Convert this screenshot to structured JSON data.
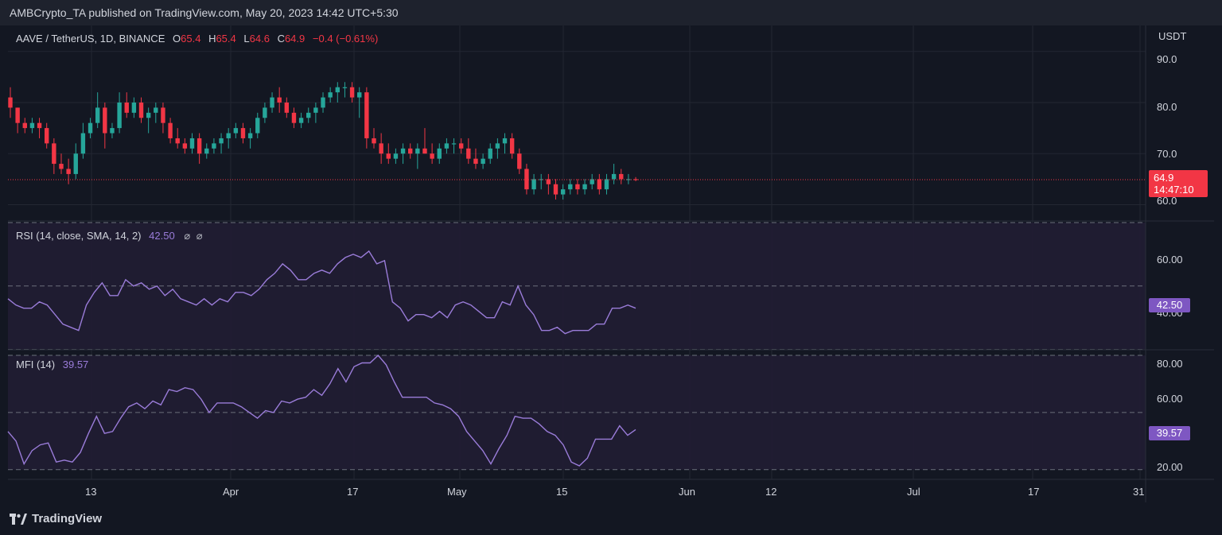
{
  "header": {
    "published": "AMBCrypto_TA published on TradingView.com, May 20, 2023 14:42 UTC+5:30"
  },
  "footer": {
    "brand": "TradingView"
  },
  "chart_data": [
    {
      "type": "candlestick",
      "symbol_line": "AAVE / TetherUS, 1D, BINANCE",
      "ohlc": {
        "o_label": "O",
        "o": "65.4",
        "h_label": "H",
        "h": "65.4",
        "l_label": "L",
        "l": "64.6",
        "c_label": "C",
        "c": "64.9",
        "change": "−0.4 (−0.61%)"
      },
      "currency": "USDT",
      "y_ticks": [
        "90.0",
        "80.0",
        "70.0",
        "60.0"
      ],
      "ylim": [
        56.8,
        95.1
      ],
      "last_price": "64.9",
      "countdown": "14:47:10",
      "candles": [
        [
          81,
          83,
          77,
          79
        ],
        [
          79,
          79,
          74,
          76
        ],
        [
          76,
          77,
          74,
          75
        ],
        [
          75,
          77,
          74,
          76
        ],
        [
          76,
          77,
          73,
          75
        ],
        [
          75,
          76,
          71,
          72
        ],
        [
          72,
          73,
          66,
          68
        ],
        [
          68,
          70,
          66,
          67
        ],
        [
          67,
          69,
          64,
          66
        ],
        [
          66,
          72,
          65,
          70
        ],
        [
          70,
          76,
          69,
          74
        ],
        [
          74,
          77,
          73,
          76
        ],
        [
          76,
          82,
          75,
          79
        ],
        [
          79,
          80,
          71,
          74
        ],
        [
          74,
          76,
          73,
          75
        ],
        [
          75,
          82,
          74,
          80
        ],
        [
          80,
          82,
          77,
          78
        ],
        [
          78,
          81,
          77,
          80
        ],
        [
          80,
          81,
          76,
          77
        ],
        [
          77,
          79,
          74,
          78
        ],
        [
          78,
          80,
          76,
          79
        ],
        [
          79,
          80,
          74,
          76
        ],
        [
          76,
          77,
          72,
          73
        ],
        [
          73,
          75,
          71,
          72
        ],
        [
          72,
          73,
          70,
          71
        ],
        [
          71,
          74,
          70,
          73
        ],
        [
          73,
          74,
          68,
          70
        ],
        [
          70,
          72,
          69,
          71
        ],
        [
          71,
          73,
          70,
          72
        ],
        [
          72,
          74,
          70,
          73
        ],
        [
          73,
          75,
          71,
          74
        ],
        [
          74,
          76,
          73,
          75
        ],
        [
          75,
          76,
          72,
          73
        ],
        [
          73,
          75,
          71,
          74
        ],
        [
          74,
          78,
          73,
          77
        ],
        [
          77,
          80,
          76,
          79
        ],
        [
          79,
          82,
          78,
          81
        ],
        [
          81,
          83,
          78,
          80
        ],
        [
          80,
          81,
          77,
          78
        ],
        [
          78,
          79,
          75,
          76
        ],
        [
          76,
          78,
          75,
          77
        ],
        [
          77,
          79,
          76,
          78
        ],
        [
          78,
          80,
          76,
          79
        ],
        [
          79,
          82,
          78,
          81
        ],
        [
          81,
          83,
          80,
          82
        ],
        [
          82,
          84,
          80,
          83
        ],
        [
          83,
          84,
          81,
          83
        ],
        [
          83,
          84,
          80,
          81
        ],
        [
          81,
          83,
          77,
          82
        ],
        [
          82,
          83,
          71,
          73
        ],
        [
          73,
          75,
          71,
          72
        ],
        [
          72,
          74,
          68,
          70
        ],
        [
          70,
          72,
          68,
          69
        ],
        [
          69,
          71,
          68,
          70
        ],
        [
          70,
          72,
          68,
          71
        ],
        [
          71,
          72,
          69,
          70
        ],
        [
          70,
          72,
          67,
          71
        ],
        [
          71,
          75,
          70,
          70
        ],
        [
          70,
          72,
          68,
          69
        ],
        [
          69,
          72,
          68,
          71
        ],
        [
          71,
          73,
          70,
          72
        ],
        [
          72,
          73,
          70,
          72
        ],
        [
          72,
          73,
          70,
          71
        ],
        [
          71,
          73,
          68,
          69
        ],
        [
          69,
          71,
          67,
          68
        ],
        [
          68,
          70,
          67,
          69
        ],
        [
          69,
          72,
          68,
          71
        ],
        [
          71,
          73,
          69,
          72
        ],
        [
          72,
          74,
          70,
          73
        ],
        [
          73,
          74,
          69,
          70
        ],
        [
          70,
          71,
          66,
          67
        ],
        [
          67,
          68,
          62,
          63
        ],
        [
          63,
          66,
          62,
          65
        ],
        [
          65,
          66,
          63,
          65
        ],
        [
          65,
          66,
          62,
          64
        ],
        [
          64,
          65,
          61,
          62
        ],
        [
          62,
          64,
          61,
          63
        ],
        [
          63,
          65,
          62,
          64
        ],
        [
          64,
          65,
          62,
          63
        ],
        [
          63,
          65,
          62,
          64
        ],
        [
          64,
          66,
          63,
          65
        ],
        [
          65,
          66,
          62,
          63
        ],
        [
          63,
          66,
          62,
          65
        ],
        [
          65,
          68,
          64,
          66
        ],
        [
          66,
          67,
          64,
          65
        ],
        [
          65,
          66,
          64,
          65
        ],
        [
          65,
          65.4,
          64.6,
          64.9
        ]
      ]
    },
    {
      "type": "line",
      "name": "RSI (14, close, SMA, 14, 2)",
      "value": "42.50",
      "y_ticks": [
        "60.00",
        "40.00"
      ],
      "ylim": [
        29.9,
        70.5
      ],
      "bands": [
        70,
        50,
        30
      ],
      "values": [
        46,
        44,
        43,
        43,
        45,
        44,
        41,
        38,
        37,
        36,
        44,
        48,
        51,
        47,
        47,
        52,
        50,
        51,
        49,
        50,
        47,
        49,
        46,
        45,
        44,
        46,
        44,
        46,
        45,
        48,
        48,
        47,
        49,
        52,
        54,
        57,
        55,
        52,
        52,
        54,
        55,
        54,
        57,
        59,
        60,
        59,
        61,
        57,
        58,
        45,
        43,
        39,
        41,
        41,
        40,
        42,
        40,
        44,
        45,
        44,
        42,
        40,
        40,
        45,
        44,
        50,
        44,
        41,
        36,
        36,
        37,
        35,
        36,
        36,
        36,
        38,
        38,
        43,
        43,
        44,
        43
      ]
    },
    {
      "type": "line",
      "name": "MFI (14)",
      "value": "39.57",
      "y_ticks": [
        "80.00",
        "60.00",
        "20.00"
      ],
      "ylim": [
        14.9,
        82.9
      ],
      "bands": [
        80,
        50,
        20
      ],
      "values": [
        40,
        35,
        23,
        30,
        33,
        34,
        24,
        25,
        24,
        29,
        39,
        48,
        39,
        40,
        47,
        53,
        55,
        52,
        56,
        54,
        62,
        61,
        63,
        62,
        57,
        50,
        55,
        55,
        55,
        53,
        50,
        47,
        51,
        50,
        56,
        55,
        57,
        58,
        62,
        59,
        65,
        73,
        66,
        74,
        76,
        76,
        80,
        75,
        66,
        58,
        58,
        58,
        58,
        55,
        54,
        52,
        48,
        40,
        35,
        30,
        23,
        31,
        38,
        48,
        47,
        47,
        44,
        40,
        38,
        33,
        24,
        22,
        26,
        36,
        36,
        36,
        43,
        38,
        41
      ]
    }
  ],
  "x_axis": {
    "ticks": [
      "13",
      "Apr",
      "17",
      "May",
      "15",
      "Jun",
      "12",
      "Jul",
      "17",
      "31"
    ]
  },
  "colors": {
    "up": "#26a69a",
    "down": "#f23645",
    "indicator": "#9a7cd9",
    "band_fill": "#211d33"
  }
}
